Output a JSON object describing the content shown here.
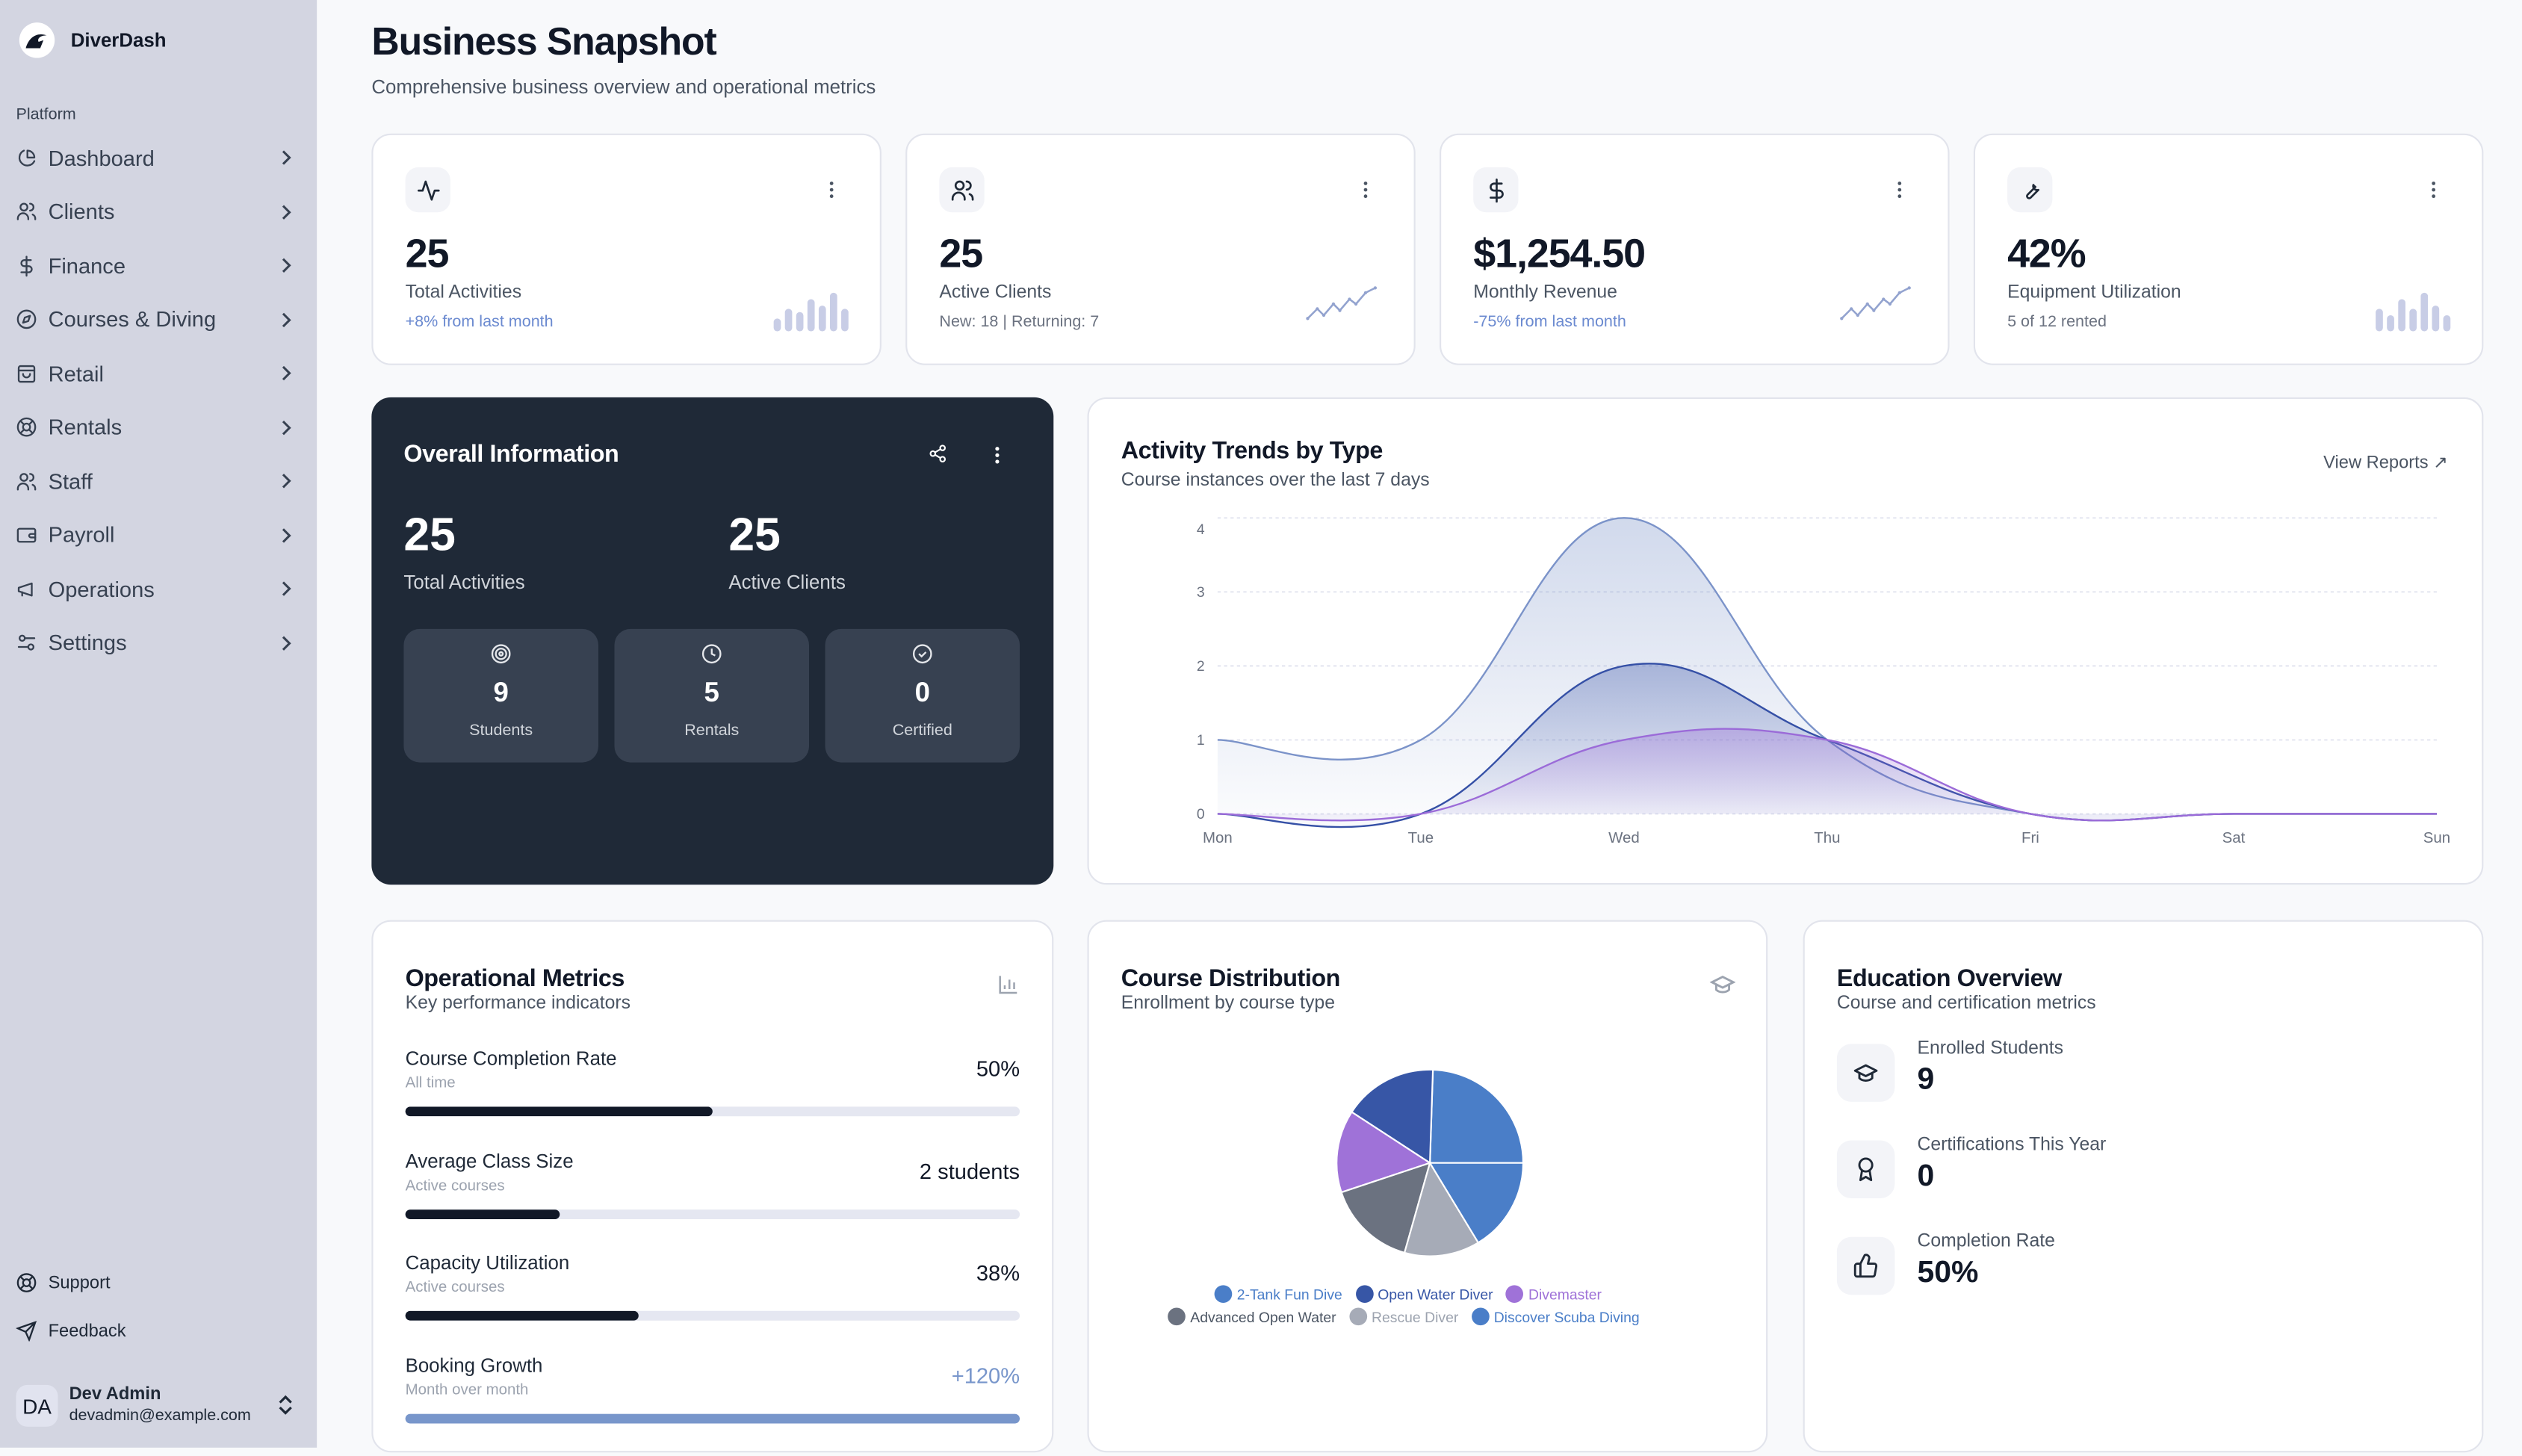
{
  "app": {
    "name": "DiverDash"
  },
  "sidebar": {
    "section": "Platform",
    "items": [
      {
        "label": "Dashboard",
        "icon": "pie-chart-icon"
      },
      {
        "label": "Clients",
        "icon": "users-icon"
      },
      {
        "label": "Finance",
        "icon": "dollar-icon"
      },
      {
        "label": "Courses & Diving",
        "icon": "compass-icon"
      },
      {
        "label": "Retail",
        "icon": "shopping-bag-icon"
      },
      {
        "label": "Rentals",
        "icon": "life-buoy-icon"
      },
      {
        "label": "Staff",
        "icon": "users-icon"
      },
      {
        "label": "Payroll",
        "icon": "wallet-icon"
      },
      {
        "label": "Operations",
        "icon": "megaphone-icon"
      },
      {
        "label": "Settings",
        "icon": "sliders-icon"
      }
    ],
    "footer": [
      {
        "label": "Support",
        "icon": "life-buoy-icon"
      },
      {
        "label": "Feedback",
        "icon": "send-icon"
      }
    ],
    "user": {
      "initials": "DA",
      "name": "Dev Admin",
      "email": "devadmin@example.com"
    }
  },
  "header": {
    "title": "Business Snapshot",
    "subtitle": "Comprehensive business overview and operational metrics"
  },
  "stats": [
    {
      "value": "25",
      "label": "Total Activities",
      "note": "+8% from last month",
      "icon": "activity-icon"
    },
    {
      "value": "25",
      "label": "Active Clients",
      "note": "New: 18 | Returning: 7",
      "icon": "users-icon"
    },
    {
      "value": "$1,254.50",
      "label": "Monthly Revenue",
      "note": "-75% from last month",
      "icon": "dollar-icon"
    },
    {
      "value": "42%",
      "label": "Equipment Utilization",
      "note": "5 of 12 rented",
      "icon": "wrench-icon"
    }
  ],
  "overall": {
    "title": "Overall Information",
    "primary": [
      {
        "value": "25",
        "label": "Total Activities"
      },
      {
        "value": "25",
        "label": "Active Clients"
      }
    ],
    "tiles": [
      {
        "value": "9",
        "label": "Students",
        "icon": "target-icon"
      },
      {
        "value": "5",
        "label": "Rentals",
        "icon": "clock-icon"
      },
      {
        "value": "0",
        "label": "Certified",
        "icon": "check-circle-icon"
      }
    ]
  },
  "trends": {
    "title": "Activity Trends by Type",
    "subtitle": "Course instances over the last 7 days",
    "link": "View Reports ↗",
    "chart_data": {
      "type": "area",
      "categories": [
        "Mon",
        "Tue",
        "Wed",
        "Thu",
        "Fri",
        "Sat",
        "Sun"
      ],
      "yticks": [
        "0",
        "1",
        "2",
        "3",
        "4"
      ],
      "ylim": [
        0,
        4
      ],
      "grid": true,
      "series": [
        {
          "values": [
            1,
            1,
            4,
            1,
            0,
            0,
            0
          ],
          "color": "#7b93c9"
        },
        {
          "values": [
            0,
            0,
            2,
            1,
            0,
            0,
            0
          ],
          "color": "#3550a6"
        },
        {
          "values": [
            0,
            0,
            1,
            1,
            0,
            0,
            0
          ],
          "color": "#9b6bd8"
        }
      ]
    }
  },
  "metrics": {
    "title": "Operational Metrics",
    "subtitle": "Key performance indicators",
    "rows": [
      {
        "label": "Course Completion Rate",
        "sub": "All time",
        "value": "50%",
        "progress": 50,
        "color": "#111827"
      },
      {
        "label": "Average Class Size",
        "sub": "Active courses",
        "value": "2 students",
        "progress": 25,
        "color": "#111827"
      },
      {
        "label": "Capacity Utilization",
        "sub": "Active courses",
        "value": "38%",
        "progress": 38,
        "color": "#111827"
      },
      {
        "label": "Booking Growth",
        "sub": "Month over month",
        "value": "+120%",
        "progress": 100,
        "color": "#7896cb"
      }
    ]
  },
  "distribution": {
    "title": "Course Distribution",
    "subtitle": "Enrollment by course type",
    "chart_data": {
      "type": "pie",
      "legend": "bottom",
      "slices": [
        {
          "name": "2-Tank Fun Dive",
          "value": 6,
          "color": "#4a7ec8"
        },
        {
          "name": "Open Water Diver",
          "value": 4,
          "color": "#3756a6"
        },
        {
          "name": "Divemaster",
          "value": 3.5,
          "color": "#9f72d8"
        },
        {
          "name": "Advanced Open Water",
          "value": 3.8,
          "color": "#6b7280"
        },
        {
          "name": "Rescue Diver",
          "value": 3.2,
          "color": "#a6abb7"
        },
        {
          "name": "Discover Scuba Diving",
          "value": 4,
          "color": "#4a7ec8"
        }
      ]
    }
  },
  "education": {
    "title": "Education Overview",
    "subtitle": "Course and certification metrics",
    "rows": [
      {
        "label": "Enrolled Students",
        "value": "9",
        "icon": "graduation-cap-icon"
      },
      {
        "label": "Certifications This Year",
        "value": "0",
        "icon": "award-icon"
      },
      {
        "label": "Completion Rate",
        "value": "50%",
        "icon": "thumbs-up-icon"
      }
    ]
  }
}
